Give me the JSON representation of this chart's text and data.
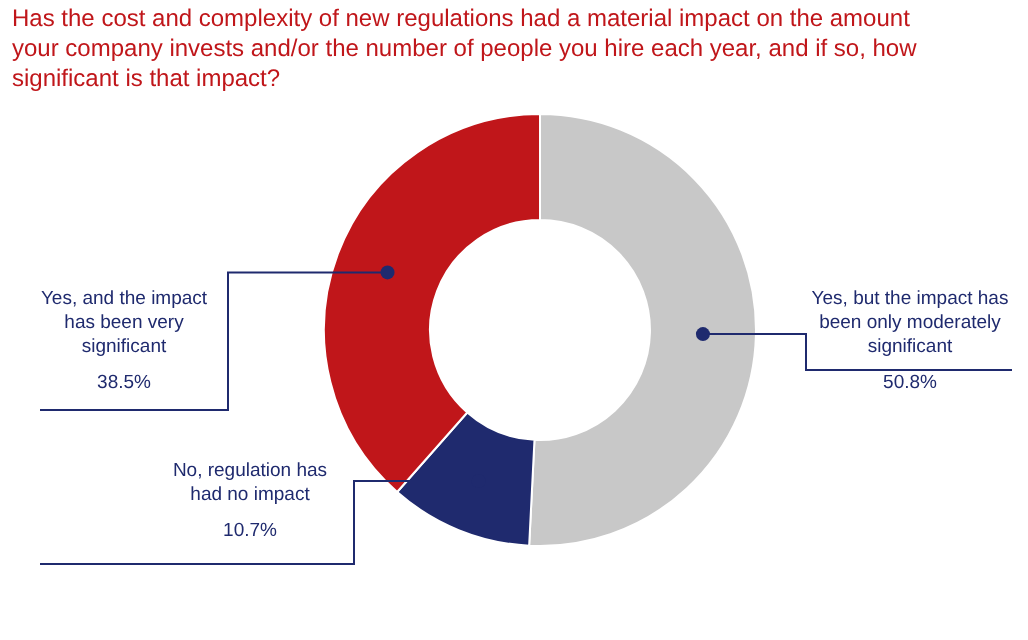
{
  "chart_data": {
    "type": "donut",
    "title": "Has the cost and complexity of new regulations had a material impact on the amount your company invests and/or the number of people you hire each year, and if so, how significant is that impact?",
    "categories": [
      "Yes, but the impact has been only moderately significant",
      "No, regulation has had no impact",
      "Yes, and the impact has been very significant"
    ],
    "values": [
      50.8,
      10.7,
      38.5
    ],
    "colors": [
      "#c8c8c8",
      "#1f2a6e",
      "#c0161a"
    ],
    "value_labels": [
      "50.8%",
      "10.7%",
      "38.5%"
    ]
  }
}
